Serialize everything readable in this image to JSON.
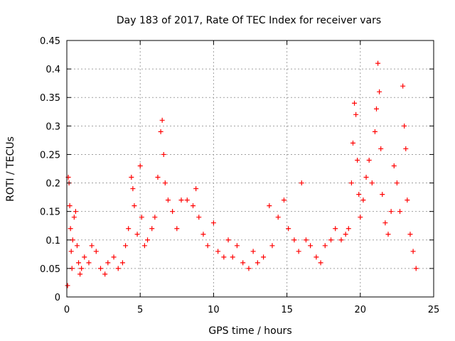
{
  "chart_data": {
    "type": "scatter",
    "title": "Day 183 of 2017, Rate Of TEC Index for receiver vars",
    "xlabel": "GPS time / hours",
    "ylabel": "ROTI / TECUs",
    "xlim": [
      0,
      25
    ],
    "ylim": [
      0,
      0.45
    ],
    "xticks": [
      0,
      5,
      10,
      15,
      20,
      25
    ],
    "yticks": [
      0,
      0.05,
      0.1,
      0.15,
      0.2,
      0.25,
      0.3,
      0.35,
      0.4,
      0.45
    ],
    "xtick_labels": [
      "0",
      "5",
      "10",
      "15",
      "20",
      "25"
    ],
    "ytick_labels": [
      "0",
      "0.05",
      "0.1",
      "0.15",
      "0.2",
      "0.25",
      "0.3",
      "0.35",
      "0.4",
      "0.45"
    ],
    "grid": true,
    "marker": "+",
    "color": "#ff0000",
    "series": [
      {
        "points": [
          [
            0.05,
            0.02
          ],
          [
            0.1,
            0.21
          ],
          [
            0.15,
            0.2
          ],
          [
            0.2,
            0.16
          ],
          [
            0.25,
            0.12
          ],
          [
            0.3,
            0.08
          ],
          [
            0.35,
            0.05
          ],
          [
            0.4,
            0.1
          ],
          [
            0.5,
            0.14
          ],
          [
            0.6,
            0.15
          ],
          [
            0.7,
            0.09
          ],
          [
            0.8,
            0.06
          ],
          [
            0.9,
            0.04
          ],
          [
            1.0,
            0.05
          ],
          [
            1.2,
            0.07
          ],
          [
            1.5,
            0.06
          ],
          [
            1.7,
            0.09
          ],
          [
            2.0,
            0.08
          ],
          [
            2.3,
            0.05
          ],
          [
            2.6,
            0.04
          ],
          [
            2.8,
            0.06
          ],
          [
            3.2,
            0.07
          ],
          [
            3.5,
            0.05
          ],
          [
            3.8,
            0.06
          ],
          [
            4.0,
            0.09
          ],
          [
            4.2,
            0.12
          ],
          [
            4.4,
            0.21
          ],
          [
            4.5,
            0.19
          ],
          [
            4.6,
            0.16
          ],
          [
            4.8,
            0.11
          ],
          [
            5.0,
            0.23
          ],
          [
            5.1,
            0.14
          ],
          [
            5.3,
            0.09
          ],
          [
            5.5,
            0.1
          ],
          [
            5.8,
            0.12
          ],
          [
            6.0,
            0.14
          ],
          [
            6.2,
            0.21
          ],
          [
            6.4,
            0.29
          ],
          [
            6.5,
            0.31
          ],
          [
            6.6,
            0.25
          ],
          [
            6.7,
            0.2
          ],
          [
            6.9,
            0.17
          ],
          [
            7.2,
            0.15
          ],
          [
            7.5,
            0.12
          ],
          [
            7.8,
            0.17
          ],
          [
            8.2,
            0.17
          ],
          [
            8.6,
            0.16
          ],
          [
            8.8,
            0.19
          ],
          [
            9.0,
            0.14
          ],
          [
            9.3,
            0.11
          ],
          [
            9.6,
            0.09
          ],
          [
            10.0,
            0.13
          ],
          [
            10.3,
            0.08
          ],
          [
            10.7,
            0.07
          ],
          [
            11.0,
            0.1
          ],
          [
            11.3,
            0.07
          ],
          [
            11.6,
            0.09
          ],
          [
            12.0,
            0.06
          ],
          [
            12.4,
            0.05
          ],
          [
            12.7,
            0.08
          ],
          [
            13.0,
            0.06
          ],
          [
            13.4,
            0.07
          ],
          [
            13.8,
            0.16
          ],
          [
            14.0,
            0.09
          ],
          [
            14.4,
            0.14
          ],
          [
            14.8,
            0.17
          ],
          [
            15.1,
            0.12
          ],
          [
            15.5,
            0.1
          ],
          [
            15.8,
            0.08
          ],
          [
            16.0,
            0.2
          ],
          [
            16.3,
            0.1
          ],
          [
            16.6,
            0.09
          ],
          [
            17.0,
            0.07
          ],
          [
            17.3,
            0.06
          ],
          [
            17.6,
            0.09
          ],
          [
            18.0,
            0.1
          ],
          [
            18.3,
            0.12
          ],
          [
            18.7,
            0.1
          ],
          [
            19.0,
            0.11
          ],
          [
            19.2,
            0.12
          ],
          [
            19.4,
            0.2
          ],
          [
            19.5,
            0.27
          ],
          [
            19.6,
            0.34
          ],
          [
            19.7,
            0.32
          ],
          [
            19.8,
            0.24
          ],
          [
            19.9,
            0.18
          ],
          [
            20.0,
            0.14
          ],
          [
            20.2,
            0.17
          ],
          [
            20.4,
            0.21
          ],
          [
            20.6,
            0.24
          ],
          [
            20.8,
            0.2
          ],
          [
            21.0,
            0.29
          ],
          [
            21.1,
            0.33
          ],
          [
            21.2,
            0.41
          ],
          [
            21.3,
            0.36
          ],
          [
            21.4,
            0.26
          ],
          [
            21.5,
            0.18
          ],
          [
            21.7,
            0.13
          ],
          [
            21.9,
            0.11
          ],
          [
            22.1,
            0.15
          ],
          [
            22.3,
            0.23
          ],
          [
            22.5,
            0.2
          ],
          [
            22.7,
            0.15
          ],
          [
            22.9,
            0.37
          ],
          [
            23.0,
            0.3
          ],
          [
            23.1,
            0.26
          ],
          [
            23.2,
            0.17
          ],
          [
            23.4,
            0.11
          ],
          [
            23.6,
            0.08
          ],
          [
            23.8,
            0.05
          ]
        ]
      }
    ]
  }
}
